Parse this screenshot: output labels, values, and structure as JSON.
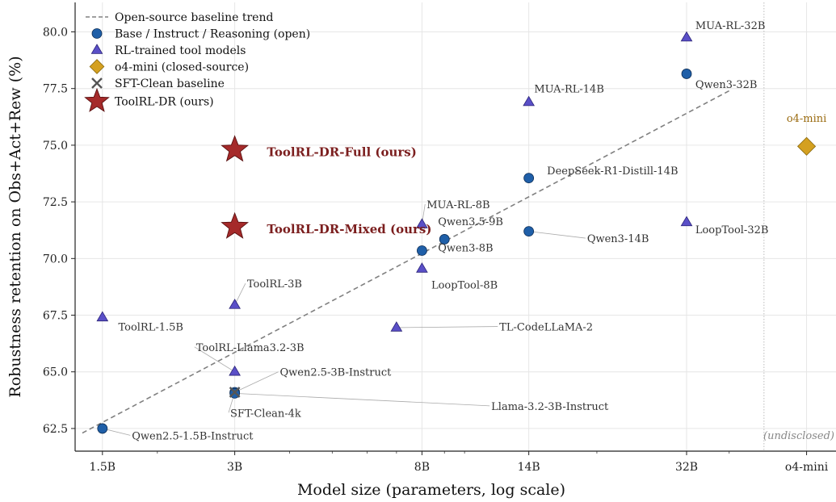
{
  "chart_data": {
    "type": "scatter",
    "xlabel": "Model size (parameters, log scale)",
    "ylabel": "Robustness retention on Obs+Act+Rew (%)",
    "x_scale": "log",
    "xlim": [
      1.3,
      70
    ],
    "ylim": [
      61.5,
      81.3
    ],
    "x_ticks": [
      {
        "x": 1.5,
        "label": "1.5B"
      },
      {
        "x": 3,
        "label": "3B"
      },
      {
        "x": 8,
        "label": "8B"
      },
      {
        "x": 14,
        "label": "14B"
      },
      {
        "x": 32,
        "label": "32B"
      },
      {
        "x": 60,
        "label": "o4-mini"
      }
    ],
    "y_ticks": [
      "62.5",
      "65.0",
      "67.5",
      "70.0",
      "72.5",
      "75.0",
      "77.5",
      "80.0"
    ],
    "grid": true,
    "legend_position": "top-left",
    "legend": [
      {
        "label": "Open-source baseline trend",
        "marker": "dashed-line",
        "color": "#808080"
      },
      {
        "label": "Base / Instruct / Reasoning (open)",
        "marker": "circle",
        "color": "#1f5fa8"
      },
      {
        "label": "RL-trained tool models",
        "marker": "triangle",
        "color": "#5a4fc7"
      },
      {
        "label": "o4-mini (closed-source)",
        "marker": "diamond",
        "color": "#d4a020"
      },
      {
        "label": "SFT-Clean baseline",
        "marker": "x",
        "color": "#555555"
      },
      {
        "label": "ToolRL-DR (ours)",
        "marker": "star",
        "color": "#a52a2a"
      }
    ],
    "trend_line": {
      "x": [
        1.35,
        40
      ],
      "y": [
        62.3,
        77.4
      ]
    },
    "closed_divider_x": 48,
    "annotation": "(undisclosed)",
    "series": [
      {
        "name": "Base / Instruct / Reasoning (open)",
        "marker": "circle",
        "color": "#1f5fa8",
        "points": [
          {
            "label": "Qwen2.5-1.5B-Instruct",
            "x": 1.5,
            "y": 62.5,
            "lx": 1.75,
            "ly": 62.2
          },
          {
            "label": "Qwen2.5-3B-Instruct",
            "x": 3,
            "y": 64.1,
            "lx": 3.8,
            "ly": 65.0
          },
          {
            "label": "Llama-3.2-3B-Instruct",
            "x": 3,
            "y": 64.05,
            "lx": 11.5,
            "ly": 63.5
          },
          {
            "label": "Qwen3-8B",
            "x": 8,
            "y": 70.35,
            "lx": 8.7,
            "ly": 70.5
          },
          {
            "label": "Qwen3.5-9B",
            "x": 9.0,
            "y": 70.85,
            "lx": 8.7,
            "ly": 71.65
          },
          {
            "label": "DeepSeek-R1-Distill-14B",
            "x": 14,
            "y": 73.55,
            "lx": 15.4,
            "ly": 73.9
          },
          {
            "label": "Qwen3-14B",
            "x": 14,
            "y": 71.2,
            "lx": 19,
            "ly": 70.9
          },
          {
            "label": "Qwen3-32B",
            "x": 32,
            "y": 78.15,
            "lx": 33.5,
            "ly": 77.7
          }
        ]
      },
      {
        "name": "RL-trained tool models",
        "marker": "triangle",
        "color": "#5a4fc7",
        "points": [
          {
            "label": "ToolRL-1.5B",
            "x": 1.5,
            "y": 67.4,
            "lx": 1.63,
            "ly": 67.0
          },
          {
            "label": "ToolRL-3B",
            "x": 3,
            "y": 67.95,
            "lx": 3.2,
            "ly": 68.9
          },
          {
            "label": "ToolRL-Llama3.2-3B",
            "x": 3,
            "y": 65.0,
            "lx": 2.45,
            "ly": 66.1
          },
          {
            "label": "MUA-RL-8B",
            "x": 8,
            "y": 71.5,
            "lx": 8.2,
            "ly": 72.4
          },
          {
            "label": "LoopTool-8B",
            "x": 8,
            "y": 69.55,
            "lx": 8.4,
            "ly": 68.85
          },
          {
            "label": "TL-CodeLLaMA-2",
            "x": 7,
            "y": 66.95,
            "lx": 12.0,
            "ly": 67.0
          },
          {
            "label": "MUA-RL-14B",
            "x": 14,
            "y": 76.9,
            "lx": 14.4,
            "ly": 77.5
          },
          {
            "label": "MUA-RL-32B",
            "x": 32,
            "y": 79.75,
            "lx": 33.5,
            "ly": 80.3
          },
          {
            "label": "LoopTool-32B",
            "x": 32,
            "y": 71.6,
            "lx": 33.5,
            "ly": 71.3
          }
        ]
      },
      {
        "name": "o4-mini (closed-source)",
        "marker": "diamond",
        "color": "#d4a020",
        "points": [
          {
            "label": "o4-mini",
            "x": 60,
            "y": 74.95,
            "lx": 60,
            "ly": 76.2
          }
        ]
      },
      {
        "name": "SFT-Clean baseline",
        "marker": "x",
        "color": "#555555",
        "points": [
          {
            "label": "SFT-Clean-4k",
            "x": 3,
            "y": 64.1,
            "lx": 2.93,
            "ly": 63.2
          }
        ]
      },
      {
        "name": "ToolRL-DR (ours)",
        "marker": "star",
        "color": "#a52a2a",
        "points": [
          {
            "label": "ToolRL-DR-Full (ours)",
            "x": 3,
            "y": 74.8,
            "lx": 3.55,
            "ly": 74.7
          },
          {
            "label": "ToolRL-DR-Mixed (ours)",
            "x": 3,
            "y": 71.4,
            "lx": 3.55,
            "ly": 71.3
          }
        ]
      }
    ]
  }
}
